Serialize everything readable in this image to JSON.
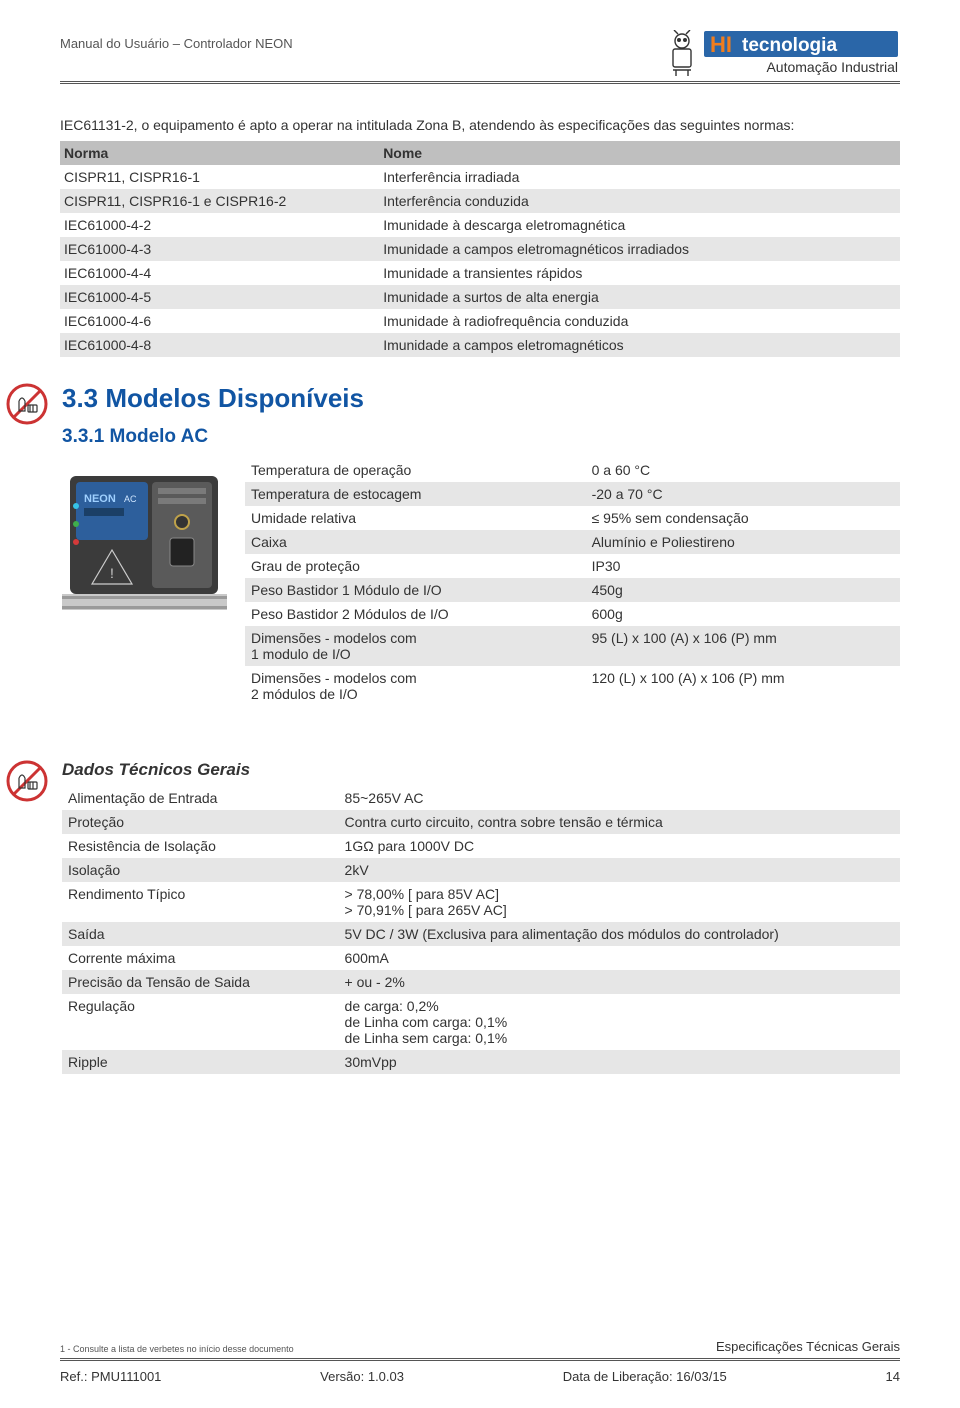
{
  "colors": {
    "heading_blue": "#1155a3",
    "row_alt": "#e6e6e6",
    "header_gray": "#bfbfbf",
    "hr": "#555555",
    "text": "#333333",
    "logo_box": "#2a66a8",
    "logo_orange": "#f07d1e"
  },
  "header": {
    "doc_title": "Manual do Usuário – Controlador NEON",
    "brand_top": "HI tecnologia",
    "brand_bottom": "Automação Industrial"
  },
  "intro_para": "IEC61131-2, o equipamento é apto a operar na intitulada Zona B, atendendo às especificações das seguintes normas:",
  "norms_table": {
    "columns": [
      "Norma",
      "Nome"
    ],
    "rows": [
      [
        "CISPR11, CISPR16-1",
        "Interferência irradiada"
      ],
      [
        "CISPR11, CISPR16-1 e CISPR16-2",
        "Interferência conduzida"
      ],
      [
        "IEC61000-4-2",
        "Imunidade à descarga eletromagnética"
      ],
      [
        "IEC61000-4-3",
        "Imunidade a campos eletromagnéticos irradiados"
      ],
      [
        "IEC61000-4-4",
        "Imunidade a transientes rápidos"
      ],
      [
        "IEC61000-4-5",
        "Imunidade a surtos de alta energia"
      ],
      [
        "IEC61000-4-6",
        "Imunidade à radiofrequência conduzida"
      ],
      [
        "IEC61000-4-8",
        "Imunidade a campos eletromagnéticos"
      ]
    ],
    "col_widths": [
      "38%",
      "62%"
    ]
  },
  "section33_title": "3.3  Modelos Disponíveis",
  "section331_title": "3.3.1 Modelo AC",
  "modelo_ac_table": {
    "rows": [
      [
        "Temperatura de operação",
        "0 a 60 °C"
      ],
      [
        "Temperatura de estocagem",
        "-20 a 70 °C"
      ],
      [
        "Umidade relativa",
        "≤ 95% sem condensação"
      ],
      [
        "Caixa",
        "Alumínio e Poliestireno"
      ],
      [
        "Grau de proteção",
        "IP30"
      ],
      [
        "Peso Bastidor 1 Módulo de I/O",
        "450g"
      ],
      [
        "Peso Bastidor 2 Módulos de I/O",
        "600g"
      ],
      [
        "Dimensões - modelos com\n1 modulo de I/O",
        "95 (L) x 100 (A) x 106 (P) mm"
      ],
      [
        "Dimensões - modelos com\n2 módulos de I/O",
        "120 (L) x 100 (A) x 106 (P) mm"
      ]
    ]
  },
  "dados_title": "Dados Técnicos Gerais",
  "dados_table": {
    "rows": [
      [
        "Alimentação de Entrada",
        "85~265V AC"
      ],
      [
        "Proteção",
        "Contra curto circuito, contra sobre tensão e térmica"
      ],
      [
        "Resistência de Isolação",
        "1GΩ para 1000V DC"
      ],
      [
        "Isolação",
        "2kV"
      ],
      [
        "Rendimento Típico",
        "> 78,00% [ para 85V AC]\n> 70,91% [ para 265V AC]"
      ],
      [
        "Saída",
        "5V DC / 3W (Exclusiva para alimentação dos módulos do controlador)"
      ],
      [
        "Corrente máxima",
        "600mA"
      ],
      [
        "Precisão da Tensão de Saida",
        "+ ou - 2%"
      ],
      [
        "Regulação",
        "de carga: 0,2%\nde Linha com carga: 0,1%\nde Linha sem carga: 0,1%"
      ],
      [
        "Ripple",
        "30mVpp"
      ]
    ],
    "col_widths": [
      "33%",
      "67%"
    ]
  },
  "footnote": "1 - Consulte a lista de verbetes no início desse documento",
  "footer": {
    "section_label": "Especificações Técnicas Gerais",
    "ref": "Ref.: PMU111001",
    "version": "Versão: 1.0.03",
    "release": "Data de Liberação: 16/03/15",
    "page": "14"
  },
  "icon": {
    "no_hand_label": "no-touch / non-interactable warning"
  }
}
